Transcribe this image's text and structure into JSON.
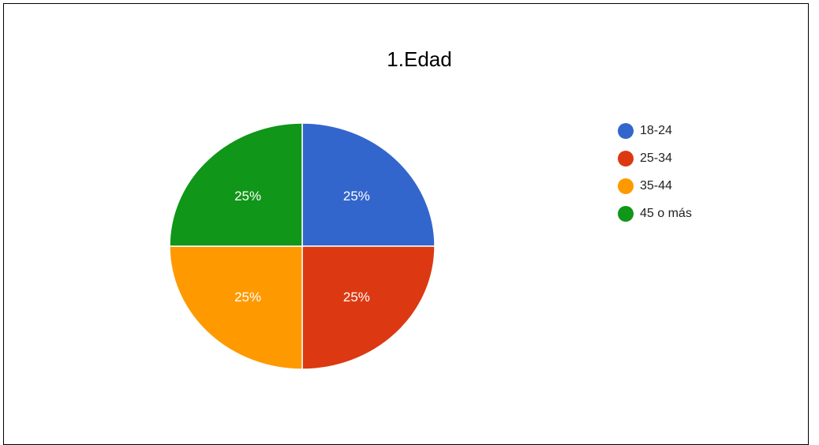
{
  "chart_data": {
    "type": "pie",
    "title": "1.Edad",
    "legend": "right",
    "slices": [
      {
        "label": "18-24",
        "value": 25,
        "display": "25%",
        "color": "#3366cc"
      },
      {
        "label": "25-34",
        "value": 25,
        "display": "25%",
        "color": "#dc3912"
      },
      {
        "label": "35-44",
        "value": 25,
        "display": "25%",
        "color": "#ff9900"
      },
      {
        "label": "45 o más",
        "value": 25,
        "display": "25%",
        "color": "#109618"
      }
    ]
  }
}
